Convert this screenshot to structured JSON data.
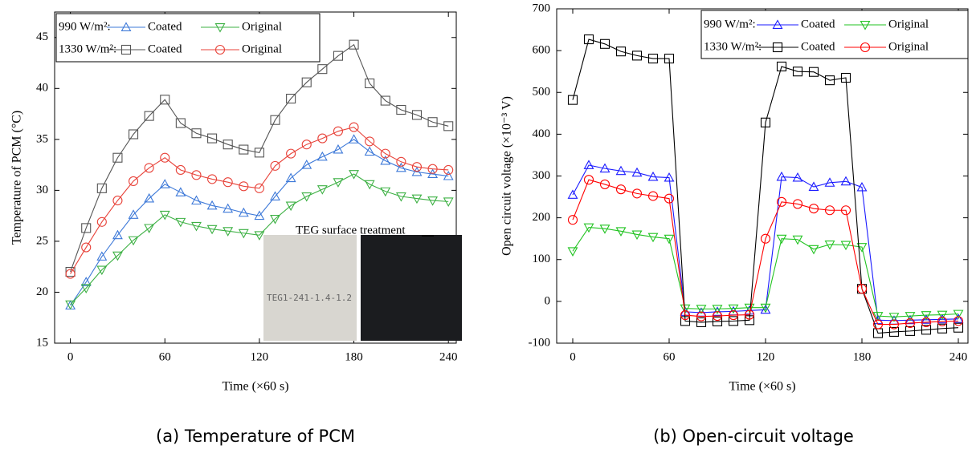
{
  "chart_data": [
    {
      "type": "line",
      "caption": "(a) Temperature of PCM",
      "xlabel": "Time (×60 s)",
      "ylabel": "Temperature of PCM (°C)",
      "x": [
        0,
        10,
        20,
        30,
        40,
        50,
        60,
        70,
        80,
        90,
        100,
        110,
        120,
        130,
        140,
        150,
        160,
        170,
        180,
        190,
        200,
        210,
        220,
        230,
        240
      ],
      "xlim": [
        -10,
        245
      ],
      "ylim": [
        15,
        47.5
      ],
      "xticks": [
        0,
        60,
        120,
        180,
        240
      ],
      "yticks": [
        15,
        20,
        25,
        30,
        35,
        40,
        45
      ],
      "legend_groups": [
        "990 W/m²:",
        "1330 W/m²:"
      ],
      "inset_title": "TEG surface treatment",
      "inset_label": "TEG1-241-1.4-1.2",
      "series": [
        {
          "name": "Coated",
          "color": "#3c78d8",
          "marker": "triangle-up",
          "values": [
            18.7,
            21.0,
            23.5,
            25.6,
            27.6,
            29.2,
            30.6,
            29.8,
            29.0,
            28.5,
            28.2,
            27.8,
            27.5,
            29.4,
            31.2,
            32.5,
            33.3,
            34.0,
            35.0,
            33.8,
            32.9,
            32.2,
            31.8,
            31.6,
            31.4
          ]
        },
        {
          "name": "Original",
          "color": "#3cb043",
          "marker": "triangle-down",
          "values": [
            18.8,
            20.4,
            22.2,
            23.6,
            25.1,
            26.3,
            27.6,
            26.9,
            26.5,
            26.2,
            26.0,
            25.8,
            25.6,
            27.2,
            28.5,
            29.4,
            30.1,
            30.8,
            31.6,
            30.6,
            29.9,
            29.4,
            29.2,
            29.0,
            28.9
          ]
        },
        {
          "name": "Coated",
          "color": "#555555",
          "marker": "square",
          "values": [
            22.0,
            26.3,
            30.2,
            33.2,
            35.5,
            37.3,
            38.9,
            36.6,
            35.6,
            35.1,
            34.5,
            34.0,
            33.7,
            36.9,
            39.0,
            40.6,
            41.9,
            43.2,
            44.3,
            40.5,
            38.8,
            37.9,
            37.4,
            36.7,
            36.3
          ]
        },
        {
          "name": "Original",
          "color": "#e8433a",
          "marker": "circle",
          "values": [
            21.8,
            24.4,
            26.9,
            29.0,
            30.9,
            32.2,
            33.2,
            32.0,
            31.5,
            31.1,
            30.8,
            30.4,
            30.2,
            32.4,
            33.6,
            34.5,
            35.1,
            35.8,
            36.2,
            34.8,
            33.6,
            32.8,
            32.3,
            32.1,
            32.0
          ]
        }
      ]
    },
    {
      "type": "line",
      "caption": "(b) Open-circuit voltage",
      "xlabel": "Time (×60 s)",
      "ylabel": "Open circuit voltage (×10⁻³ V)",
      "x": [
        0,
        10,
        20,
        30,
        40,
        50,
        60,
        70,
        80,
        90,
        100,
        110,
        120,
        130,
        140,
        150,
        160,
        170,
        180,
        190,
        200,
        210,
        220,
        230,
        240
      ],
      "xlim": [
        -10,
        246
      ],
      "ylim": [
        -100,
        700
      ],
      "xticks": [
        0,
        60,
        120,
        180,
        240
      ],
      "yticks": [
        -100,
        0,
        100,
        200,
        300,
        400,
        500,
        600,
        700
      ],
      "legend_groups": [
        "990 W/m²:",
        "1330 W/m²:"
      ],
      "series": [
        {
          "name": "Coated",
          "color": "#1a1aff",
          "marker": "triangle-up",
          "values": [
            255,
            326,
            318,
            312,
            308,
            298,
            296,
            -25,
            -27,
            -25,
            -24,
            -22,
            -20,
            298,
            296,
            274,
            284,
            287,
            273,
            -45,
            -46,
            -45,
            -44,
            -43,
            -42
          ]
        },
        {
          "name": "Original",
          "color": "#22c322",
          "marker": "triangle-down",
          "values": [
            120,
            177,
            174,
            168,
            160,
            154,
            150,
            -17,
            -18,
            -18,
            -17,
            -15,
            -15,
            150,
            148,
            125,
            136,
            135,
            130,
            -35,
            -37,
            -35,
            -33,
            -32,
            -30
          ]
        },
        {
          "name": "Coated",
          "color": "#000000",
          "marker": "square",
          "values": [
            482,
            627,
            616,
            598,
            588,
            581,
            581,
            -47,
            -50,
            -48,
            -47,
            -45,
            428,
            562,
            550,
            549,
            529,
            535,
            30,
            -76,
            -73,
            -71,
            -68,
            -65,
            -63
          ]
        },
        {
          "name": "Original",
          "color": "#ff0000",
          "marker": "circle",
          "values": [
            195,
            291,
            280,
            268,
            258,
            252,
            246,
            -33,
            -36,
            -35,
            -33,
            -32,
            150,
            238,
            233,
            222,
            218,
            218,
            30,
            -55,
            -55,
            -52,
            -50,
            -48,
            -47
          ]
        }
      ]
    }
  ]
}
